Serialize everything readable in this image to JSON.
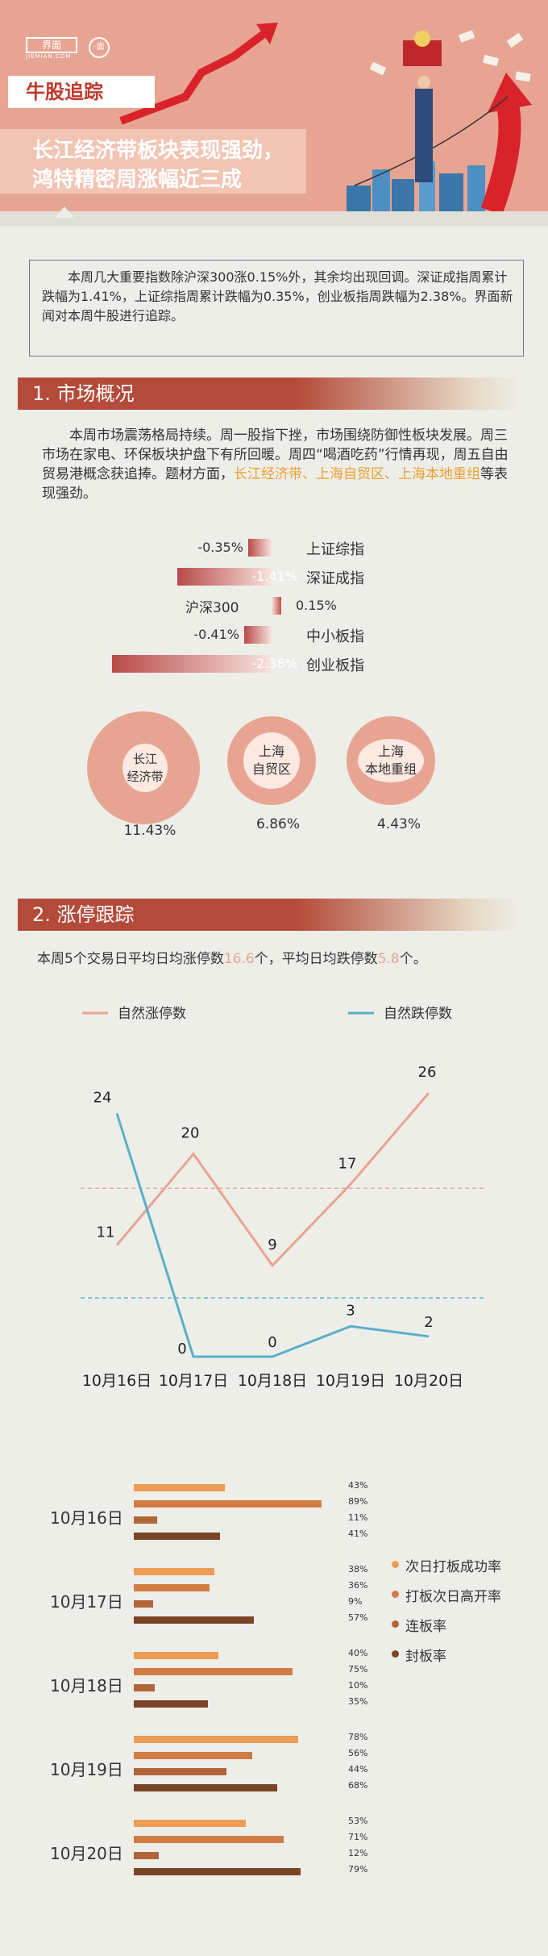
{
  "header": {
    "logo": "界面",
    "logo_sub": "JIEMIAN.COM",
    "badge": "·面",
    "tag": "牛股追踪",
    "headline_line1": "长江经济带板块表现强劲，",
    "headline_line2": "鸿特精密周涨幅近三成"
  },
  "summary": "本周几大重要指数除沪深300涨0.15%外，其余均出现回调。深证成指周累计跌幅为1.41%，上证综指周累计跌幅为0.35%，创业板指周跌幅为2.38%。界面新闻对本周牛股进行追踪。",
  "section1": {
    "title": "1. 市场概况",
    "para_a": "本周市场震荡格局持续。周一股指下挫，市场围绕防御性板块发展。周三市场在家电、环保板块护盘下有所回暖。周四“喝酒吃药”行情再现，周五自由贸易港概念获追捧。题材方面，",
    "para_hl": "长江经济带、上海自贸区、上海本地重组",
    "para_b": "等表现强劲。",
    "indices": [
      {
        "name": "上证综指",
        "value": "-0.35%",
        "pct": -0.35
      },
      {
        "name": "深证成指",
        "value": "-1.41%",
        "pct": -1.41
      },
      {
        "name": "沪深300",
        "value": "0.15%",
        "pct": 0.15
      },
      {
        "name": "中小板指",
        "value": "-0.41%",
        "pct": -0.41
      },
      {
        "name": "创业板指",
        "value": "-2.38%",
        "pct": -2.38
      }
    ],
    "sectors": [
      {
        "name1": "长江",
        "name2": "经济带",
        "value": "11.43%"
      },
      {
        "name1": "上海",
        "name2": "自贸区",
        "value": "6.86%"
      },
      {
        "name1": "上海",
        "name2": "本地重组",
        "value": "4.43%"
      }
    ]
  },
  "section2": {
    "title": "2. 涨停跟踪",
    "intro_a": "本周5个交易日平均日均涨停数",
    "intro_v1": "16.6",
    "intro_b": "个，平均日均跌停数",
    "intro_v2": "5.8",
    "intro_c": "个。"
  },
  "chart_data": [
    {
      "type": "line",
      "categories": [
        "10月16日",
        "10月17日",
        "10月18日",
        "10月19日",
        "10月20日"
      ],
      "series": [
        {
          "name": "自然涨停数",
          "values": [
            11,
            20,
            9,
            17,
            26
          ],
          "color": "#e8a492"
        },
        {
          "name": "自然跌停数",
          "values": [
            24,
            0,
            0,
            3,
            2
          ],
          "color": "#5aafc8"
        }
      ],
      "data_labels_shown": [
        true,
        true,
        true,
        true,
        true
      ],
      "dashed_reference_lines": [
        16.6,
        5.8
      ]
    },
    {
      "type": "bar",
      "orientation": "horizontal",
      "categories": [
        "10月16日",
        "10月17日",
        "10月18日",
        "10月19日",
        "10月20日"
      ],
      "series": [
        {
          "name": "次日打板成功率",
          "values": [
            43,
            38,
            40,
            78,
            53
          ],
          "labels": [
            "43%",
            "38%",
            "40%",
            "78%",
            "53%"
          ],
          "color": "#ec9c55"
        },
        {
          "name": "打板次日高开率",
          "values": [
            89,
            36,
            75,
            56,
            71
          ],
          "labels": [
            "89%",
            "36%",
            "75%",
            "56%",
            "71%"
          ],
          "color": "#d27c45"
        },
        {
          "name": "连板率",
          "values": [
            11,
            9,
            10,
            44,
            12
          ],
          "labels": [
            "11%",
            "9%",
            "10%",
            "44%",
            "12%"
          ],
          "color": "#b0663a"
        },
        {
          "name": "封板率",
          "values": [
            41,
            57,
            35,
            68,
            79
          ],
          "labels": [
            "41%",
            "57%",
            "35%",
            "68%",
            "79%"
          ],
          "color": "#7a4526"
        }
      ],
      "legend": "right"
    }
  ]
}
